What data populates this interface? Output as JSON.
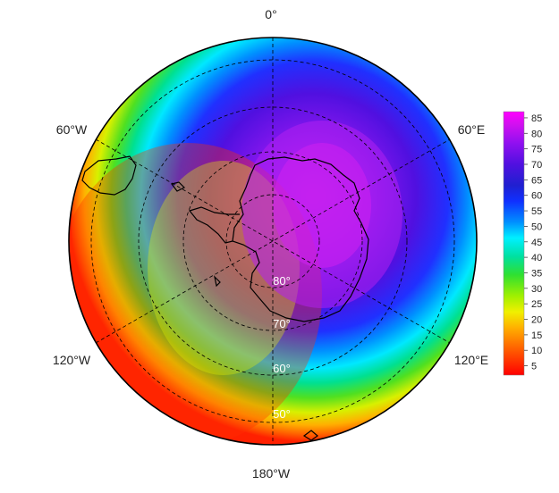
{
  "map": {
    "projection": "south-polar stereographic",
    "longitude_labels": [
      "0°",
      "60°E",
      "120°E",
      "180°W",
      "120°W",
      "60°W"
    ],
    "latitude_labels": [
      "80°",
      "70°",
      "60°",
      "50°"
    ]
  },
  "colorbar": {
    "ticks": [
      "85",
      "80",
      "75",
      "70",
      "65",
      "60",
      "55",
      "50",
      "45",
      "40",
      "35",
      "30",
      "25",
      "20",
      "15",
      "10",
      "5"
    ],
    "colors": [
      "#ff0000",
      "#ff6000",
      "#ffb000",
      "#f0f000",
      "#a0f000",
      "#30e030",
      "#00e0a0",
      "#00f0ff",
      "#0090ff",
      "#1030ff",
      "#2020d0",
      "#4010e0",
      "#7010f0",
      "#a010f0",
      "#d010f0",
      "#ff00ff"
    ],
    "range": [
      2,
      87
    ]
  }
}
